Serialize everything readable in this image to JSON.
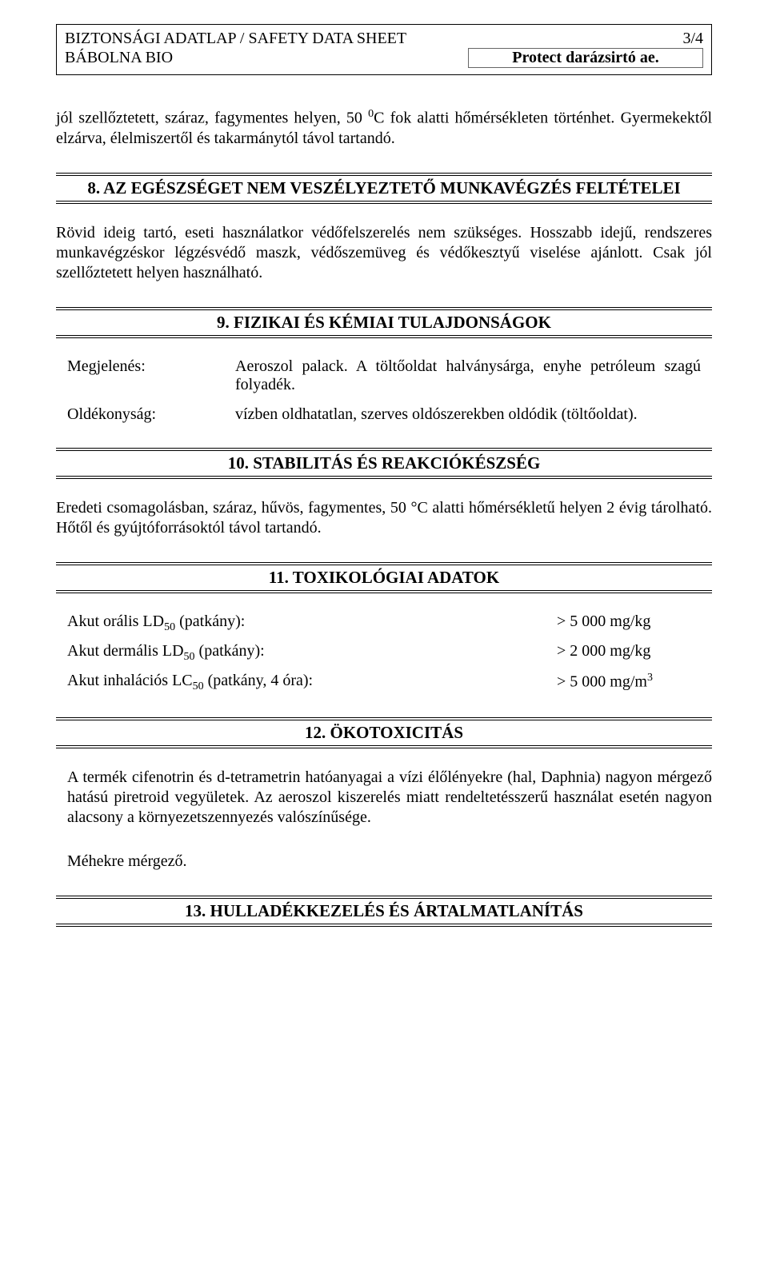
{
  "header": {
    "title_line1": "BIZTONSÁGI ADATLAP / SAFETY DATA SHEET",
    "page_num": "3/4",
    "company": "BÁBOLNA BIO",
    "product": "Protect darázsirtó ae."
  },
  "intro_paragraph_pre": "jól szellőztetett, száraz, fagymentes helyen, 50 ",
  "intro_paragraph_post": "C fok alatti hőmérsékleten történhet. Gyermekektől elzárva, élelmiszertől és takarmánytól távol tartandó.",
  "section8": {
    "heading": "8. AZ EGÉSZSÉGET NEM VESZÉLYEZTETŐ MUNKAVÉGZÉS FELTÉTELEI",
    "body": "Rövid ideig tartó, eseti használatkor védőfelszerelés nem szükséges. Hosszabb idejű, rendszeres munkavégzéskor légzésvédő maszk, védőszemüveg és védőkesztyű viselése ajánlott. Csak jól szellőztetett helyen használható."
  },
  "section9": {
    "heading": "9. FIZIKAI ÉS KÉMIAI TULAJDONSÁGOK",
    "rows": [
      {
        "label": "Megjelenés:",
        "value": "Aeroszol palack. A töltőoldat halványsárga, enyhe petróleum szagú folyadék."
      },
      {
        "label": "Oldékonyság:",
        "value": "vízben oldhatatlan, szerves oldószerekben oldódik (töltőoldat)."
      }
    ]
  },
  "section10": {
    "heading": "10. STABILITÁS ÉS REAKCIÓKÉSZSÉG",
    "body": "Eredeti csomagolásban, száraz, hűvös, fagymentes, 50 °C alatti hőmérsékletű helyen 2 évig tárolható. Hőtől és gyújtóforrásoktól távol tartandó."
  },
  "section11": {
    "heading": "11. TOXIKOLÓGIAI ADATOK",
    "rows": [
      {
        "label_pre": "Akut orális LD",
        "label_sub": "50",
        "label_post": " (patkány):",
        "value": "> 5 000 mg/kg",
        "value_sup": ""
      },
      {
        "label_pre": "Akut dermális LD",
        "label_sub": "50",
        "label_post": " (patkány):",
        "value": "> 2 000 mg/kg",
        "value_sup": ""
      },
      {
        "label_pre": "Akut inhalációs LC",
        "label_sub": "50",
        "label_post": " (patkány, 4 óra):",
        "value": "> 5 000 mg/m",
        "value_sup": "3"
      }
    ]
  },
  "section12": {
    "heading": "12. ÖKOTOXICITÁS",
    "body1": "A termék cifenotrin és d-tetrametrin hatóanyagai a vízi élőlényekre (hal, Daphnia) nagyon mérgező hatású piretroid vegyületek. Az aeroszol kiszerelés miatt rendeltetésszerű használat esetén nagyon alacsony a környezetszennyezés valószínűsége.",
    "body2": "Méhekre mérgező."
  },
  "section13": {
    "heading": "13. HULLADÉKKEZELÉS ÉS ÁRTALMATLANÍTÁS"
  }
}
